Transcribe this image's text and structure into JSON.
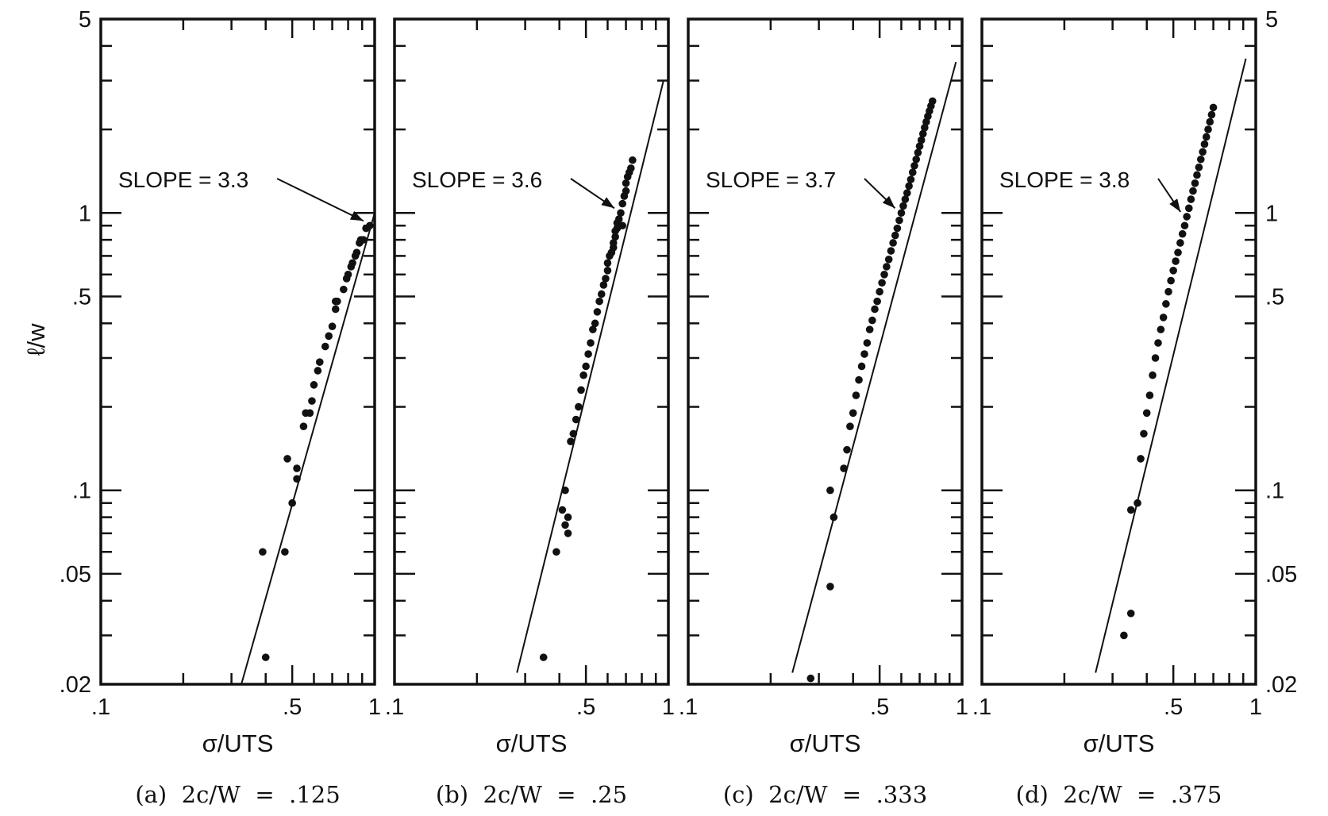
{
  "y_axis_title": "ℓ/w",
  "chart_data": [
    {
      "type": "scatter",
      "caption": "(a)  2c/W  =  .125",
      "xlabel": "σ/UTS",
      "ylabel": "ℓ/w",
      "x_scale": "log",
      "y_scale": "log",
      "xlim": [
        0.1,
        1
      ],
      "ylim": [
        0.02,
        5
      ],
      "x_tick_labels": [
        ".1",
        ".5",
        "1"
      ],
      "y_tick_labels": [
        ".02",
        ".05",
        ".1",
        ".5",
        "1",
        "5"
      ],
      "annotation": "SLOPE = 3.3",
      "fit_line": [
        [
          0.326,
          0.02
        ],
        [
          1.0,
          1.0
        ]
      ],
      "x": [
        0.4,
        0.39,
        0.47,
        0.48,
        0.5,
        0.52,
        0.52,
        0.55,
        0.56,
        0.58,
        0.59,
        0.6,
        0.62,
        0.63,
        0.66,
        0.68,
        0.7,
        0.72,
        0.72,
        0.73,
        0.77,
        0.79,
        0.8,
        0.82,
        0.83,
        0.85,
        0.86,
        0.88,
        0.89,
        0.91,
        0.93,
        0.96
      ],
      "y": [
        0.025,
        0.06,
        0.06,
        0.13,
        0.09,
        0.12,
        0.11,
        0.17,
        0.19,
        0.19,
        0.21,
        0.24,
        0.27,
        0.29,
        0.33,
        0.36,
        0.39,
        0.45,
        0.48,
        0.48,
        0.53,
        0.58,
        0.6,
        0.64,
        0.66,
        0.7,
        0.72,
        0.78,
        0.8,
        0.8,
        0.88,
        0.9
      ]
    },
    {
      "type": "scatter",
      "caption": "(b)  2c/W  =  .25",
      "xlabel": "σ/UTS",
      "ylabel": "ℓ/w",
      "x_scale": "log",
      "y_scale": "log",
      "xlim": [
        0.1,
        1
      ],
      "ylim": [
        0.02,
        5
      ],
      "x_tick_labels": [
        ".1",
        ".5",
        "1"
      ],
      "y_tick_labels": [
        ".02",
        ".05",
        ".1",
        ".5",
        "1",
        "5"
      ],
      "annotation": "SLOPE = 3.6",
      "fit_line": [
        [
          0.28,
          0.022
        ],
        [
          0.96,
          3.0
        ]
      ],
      "x": [
        0.35,
        0.39,
        0.41,
        0.42,
        0.42,
        0.43,
        0.43,
        0.44,
        0.45,
        0.46,
        0.47,
        0.48,
        0.49,
        0.5,
        0.51,
        0.52,
        0.53,
        0.54,
        0.55,
        0.56,
        0.57,
        0.58,
        0.59,
        0.6,
        0.6,
        0.61,
        0.62,
        0.63,
        0.63,
        0.64,
        0.64,
        0.65,
        0.65,
        0.66,
        0.67,
        0.68,
        0.68,
        0.69,
        0.7,
        0.7,
        0.71,
        0.72,
        0.73,
        0.74
      ],
      "y": [
        0.025,
        0.06,
        0.085,
        0.075,
        0.1,
        0.08,
        0.07,
        0.15,
        0.16,
        0.18,
        0.2,
        0.23,
        0.26,
        0.28,
        0.31,
        0.34,
        0.38,
        0.4,
        0.44,
        0.48,
        0.51,
        0.55,
        0.58,
        0.62,
        0.66,
        0.7,
        0.72,
        0.75,
        0.78,
        0.82,
        0.86,
        0.88,
        0.92,
        0.95,
        1.0,
        0.9,
        1.08,
        1.15,
        1.2,
        1.28,
        1.35,
        1.4,
        1.45,
        1.55
      ]
    },
    {
      "type": "scatter",
      "caption": "(c)  2c/W  =  .333",
      "xlabel": "σ/UTS",
      "ylabel": "ℓ/w",
      "x_scale": "log",
      "y_scale": "log",
      "xlim": [
        0.1,
        1
      ],
      "ylim": [
        0.02,
        5
      ],
      "x_tick_labels": [
        ".1",
        ".5",
        "1"
      ],
      "y_tick_labels": [
        ".02",
        ".05",
        ".1",
        ".5",
        "1",
        "5"
      ],
      "annotation": "SLOPE = 3.7",
      "fit_line": [
        [
          0.24,
          0.022
        ],
        [
          0.95,
          3.5
        ]
      ],
      "x": [
        0.28,
        0.33,
        0.33,
        0.34,
        0.37,
        0.38,
        0.39,
        0.4,
        0.41,
        0.42,
        0.43,
        0.44,
        0.45,
        0.46,
        0.47,
        0.48,
        0.49,
        0.5,
        0.51,
        0.52,
        0.53,
        0.54,
        0.55,
        0.56,
        0.57,
        0.58,
        0.59,
        0.6,
        0.61,
        0.62,
        0.63,
        0.64,
        0.65,
        0.66,
        0.67,
        0.68,
        0.69,
        0.7,
        0.71,
        0.72,
        0.73,
        0.74,
        0.75,
        0.76,
        0.77,
        0.78
      ],
      "y": [
        0.021,
        0.045,
        0.1,
        0.08,
        0.12,
        0.14,
        0.17,
        0.19,
        0.22,
        0.25,
        0.28,
        0.31,
        0.34,
        0.38,
        0.41,
        0.45,
        0.48,
        0.52,
        0.56,
        0.6,
        0.64,
        0.68,
        0.73,
        0.78,
        0.83,
        0.88,
        0.94,
        1.0,
        1.06,
        1.12,
        1.18,
        1.25,
        1.32,
        1.4,
        1.48,
        1.56,
        1.65,
        1.74,
        1.83,
        1.93,
        2.03,
        2.13,
        2.23,
        2.33,
        2.43,
        2.53
      ]
    },
    {
      "type": "scatter",
      "caption": "(d)  2c/W  =  .375",
      "xlabel": "σ/UTS",
      "ylabel": "ℓ/w",
      "x_scale": "log",
      "y_scale": "log",
      "xlim": [
        0.1,
        1
      ],
      "ylim": [
        0.02,
        5
      ],
      "x_tick_labels": [
        ".1",
        ".5",
        "1"
      ],
      "y_tick_labels": [
        ".02",
        ".05",
        ".1",
        ".5",
        "1",
        "5"
      ],
      "annotation": "SLOPE = 3.8",
      "fit_line": [
        [
          0.26,
          0.022
        ],
        [
          0.92,
          3.6
        ]
      ],
      "x": [
        0.33,
        0.35,
        0.35,
        0.37,
        0.38,
        0.39,
        0.4,
        0.41,
        0.42,
        0.43,
        0.44,
        0.45,
        0.46,
        0.47,
        0.48,
        0.49,
        0.5,
        0.51,
        0.52,
        0.53,
        0.54,
        0.55,
        0.56,
        0.57,
        0.58,
        0.59,
        0.6,
        0.61,
        0.62,
        0.63,
        0.64,
        0.65,
        0.66,
        0.67,
        0.68,
        0.69,
        0.7
      ],
      "y": [
        0.03,
        0.036,
        0.085,
        0.09,
        0.13,
        0.16,
        0.19,
        0.22,
        0.26,
        0.3,
        0.34,
        0.38,
        0.42,
        0.47,
        0.52,
        0.57,
        0.62,
        0.67,
        0.72,
        0.78,
        0.84,
        0.9,
        0.97,
        1.04,
        1.12,
        1.2,
        1.28,
        1.37,
        1.46,
        1.56,
        1.66,
        1.77,
        1.88,
        2.0,
        2.13,
        2.26,
        2.4
      ]
    }
  ]
}
